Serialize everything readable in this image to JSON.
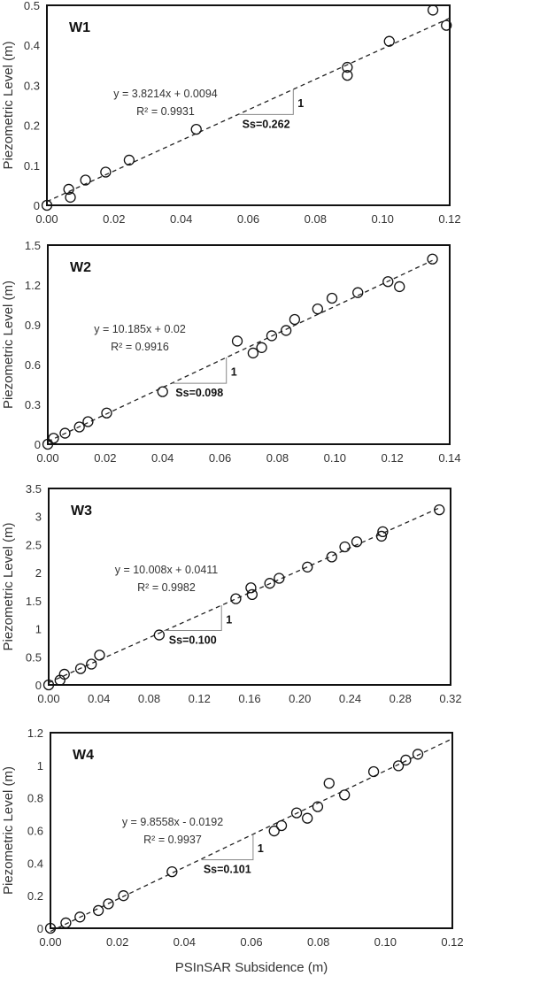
{
  "chart_data": [
    {
      "type": "scatter",
      "panel_label": "W1",
      "xlabel": "",
      "ylabel": "Piezometric Level (m)",
      "xlim": [
        0,
        0.12
      ],
      "ylim": [
        0,
        0.5
      ],
      "xticks": [
        "0.00",
        "0.02",
        "0.04",
        "0.06",
        "0.08",
        "0.10",
        "0.12"
      ],
      "yticks": [
        "0",
        "0.1",
        "0.2",
        "0.3",
        "0.4",
        "0.5"
      ],
      "points": [
        [
          0,
          0
        ],
        [
          0.0065,
          0.04
        ],
        [
          0.007,
          0.02
        ],
        [
          0.0115,
          0.063
        ],
        [
          0.0175,
          0.083
        ],
        [
          0.0245,
          0.113
        ],
        [
          0.0445,
          0.19
        ],
        [
          0.0895,
          0.345
        ],
        [
          0.0895,
          0.325
        ],
        [
          0.102,
          0.41
        ],
        [
          0.115,
          0.488
        ],
        [
          0.119,
          0.45
        ]
      ],
      "trendline": {
        "slope": 3.8214,
        "intercept": 0.0094,
        "x_range": [
          0,
          0.12
        ],
        "style": "dashed"
      },
      "equation": "y = 3.8214x + 0.0094",
      "r2_label": "R² = 0.9931",
      "slope_triangle": {
        "x": [
          0.0572,
          0.0734
        ],
        "y_base": 0.227,
        "rise_label": "1",
        "run_label": "Ss=0.262"
      },
      "grid": false
    },
    {
      "type": "scatter",
      "panel_label": "W2",
      "xlabel": "",
      "ylabel": "Piezometric Level (m)",
      "xlim": [
        0,
        0.14
      ],
      "ylim": [
        0,
        1.5
      ],
      "xticks": [
        "0.00",
        "0.02",
        "0.04",
        "0.06",
        "0.08",
        "0.10",
        "0.12",
        "0.14"
      ],
      "yticks": [
        "0",
        "0.3",
        "0.6",
        "0.9",
        "1.2",
        "1.5"
      ],
      "points": [
        [
          0,
          0
        ],
        [
          0.002,
          0.045
        ],
        [
          0.006,
          0.083
        ],
        [
          0.011,
          0.13
        ],
        [
          0.014,
          0.17
        ],
        [
          0.0205,
          0.235
        ],
        [
          0.04,
          0.396
        ],
        [
          0.066,
          0.777
        ],
        [
          0.0715,
          0.687
        ],
        [
          0.0745,
          0.728
        ],
        [
          0.078,
          0.817
        ],
        [
          0.083,
          0.857
        ],
        [
          0.086,
          0.94
        ],
        [
          0.094,
          1.019
        ],
        [
          0.099,
          1.1
        ],
        [
          0.108,
          1.142
        ],
        [
          0.1185,
          1.225
        ],
        [
          0.1225,
          1.187
        ],
        [
          0.134,
          1.395
        ]
      ],
      "trendline": {
        "slope": 10.185,
        "intercept": 0.02,
        "x_range": [
          0,
          0.134
        ],
        "style": "dashed"
      },
      "equation": "y = 10.185x + 0.02",
      "r2_label": "R² = 0.9916",
      "slope_triangle": {
        "x": [
          0.0434,
          0.0622
        ],
        "y_base": 0.459,
        "rise_label": "1",
        "run_label": "Ss=0.098"
      },
      "grid": false
    },
    {
      "type": "scatter",
      "panel_label": "W3",
      "xlabel": "",
      "ylabel": "Piezometric Level (m)",
      "xlim": [
        0,
        0.32
      ],
      "ylim": [
        0,
        3.5
      ],
      "xticks": [
        "0.00",
        "0.04",
        "0.08",
        "0.12",
        "0.16",
        "0.20",
        "0.24",
        "0.28",
        "0.32"
      ],
      "yticks": [
        "0",
        "0.5",
        "1",
        "1.5",
        "2",
        "2.5",
        "3",
        "3.5"
      ],
      "points": [
        [
          0,
          0
        ],
        [
          0.009,
          0.084
        ],
        [
          0.0125,
          0.19
        ],
        [
          0.0254,
          0.29
        ],
        [
          0.034,
          0.37
        ],
        [
          0.0405,
          0.53
        ],
        [
          0.088,
          0.89
        ],
        [
          0.149,
          1.535
        ],
        [
          0.161,
          1.73
        ],
        [
          0.162,
          1.61
        ],
        [
          0.176,
          1.81
        ],
        [
          0.1835,
          1.9
        ],
        [
          0.206,
          2.1
        ],
        [
          0.2254,
          2.28
        ],
        [
          0.2358,
          2.46
        ],
        [
          0.2453,
          2.55
        ],
        [
          0.265,
          2.65
        ],
        [
          0.266,
          2.73
        ],
        [
          0.311,
          3.12
        ]
      ],
      "trendline": {
        "slope": 10.008,
        "intercept": 0.0411,
        "x_range": [
          0,
          0.311
        ],
        "style": "dashed"
      },
      "equation": "y = 10.008x + 0.0411",
      "r2_label": "R² = 0.9982",
      "slope_triangle": {
        "x": [
          0.0918,
          0.1376
        ],
        "y_base": 0.97,
        "rise_label": "1",
        "run_label": "Ss=0.100"
      },
      "grid": false
    },
    {
      "type": "scatter",
      "panel_label": "W4",
      "xlabel": "PSInSAR Subsidence (m)",
      "ylabel": "Piezometric Level (m)",
      "xlim": [
        0,
        0.12
      ],
      "ylim": [
        0,
        1.2
      ],
      "xticks": [
        "0.00",
        "0.02",
        "0.04",
        "0.06",
        "0.08",
        "0.10",
        "0.12"
      ],
      "yticks": [
        "0",
        "0.2",
        "0.4",
        "0.6",
        "0.8",
        "1",
        "1.2"
      ],
      "points": [
        [
          0,
          0
        ],
        [
          0.0046,
          0.033
        ],
        [
          0.0088,
          0.069
        ],
        [
          0.0143,
          0.109
        ],
        [
          0.0173,
          0.15
        ],
        [
          0.0218,
          0.2
        ],
        [
          0.0363,
          0.347
        ],
        [
          0.0668,
          0.597
        ],
        [
          0.069,
          0.63
        ],
        [
          0.0735,
          0.708
        ],
        [
          0.0767,
          0.675
        ],
        [
          0.0798,
          0.746
        ],
        [
          0.0832,
          0.89
        ],
        [
          0.0878,
          0.818
        ],
        [
          0.0965,
          0.961
        ],
        [
          0.1039,
          0.997
        ],
        [
          0.1061,
          1.032
        ],
        [
          0.1097,
          1.068
        ]
      ],
      "trendline": {
        "slope": 9.8558,
        "intercept": -0.0192,
        "x_range": [
          0,
          0.12
        ],
        "style": "dashed"
      },
      "equation": "y = 9.8558x - 0.0192",
      "r2_label": "R² = 0.9937",
      "slope_triangle": {
        "x": [
          0.0451,
          0.0605
        ],
        "y_base": 0.42,
        "rise_label": "1",
        "run_label": "Ss=0.101"
      },
      "grid": false
    }
  ]
}
